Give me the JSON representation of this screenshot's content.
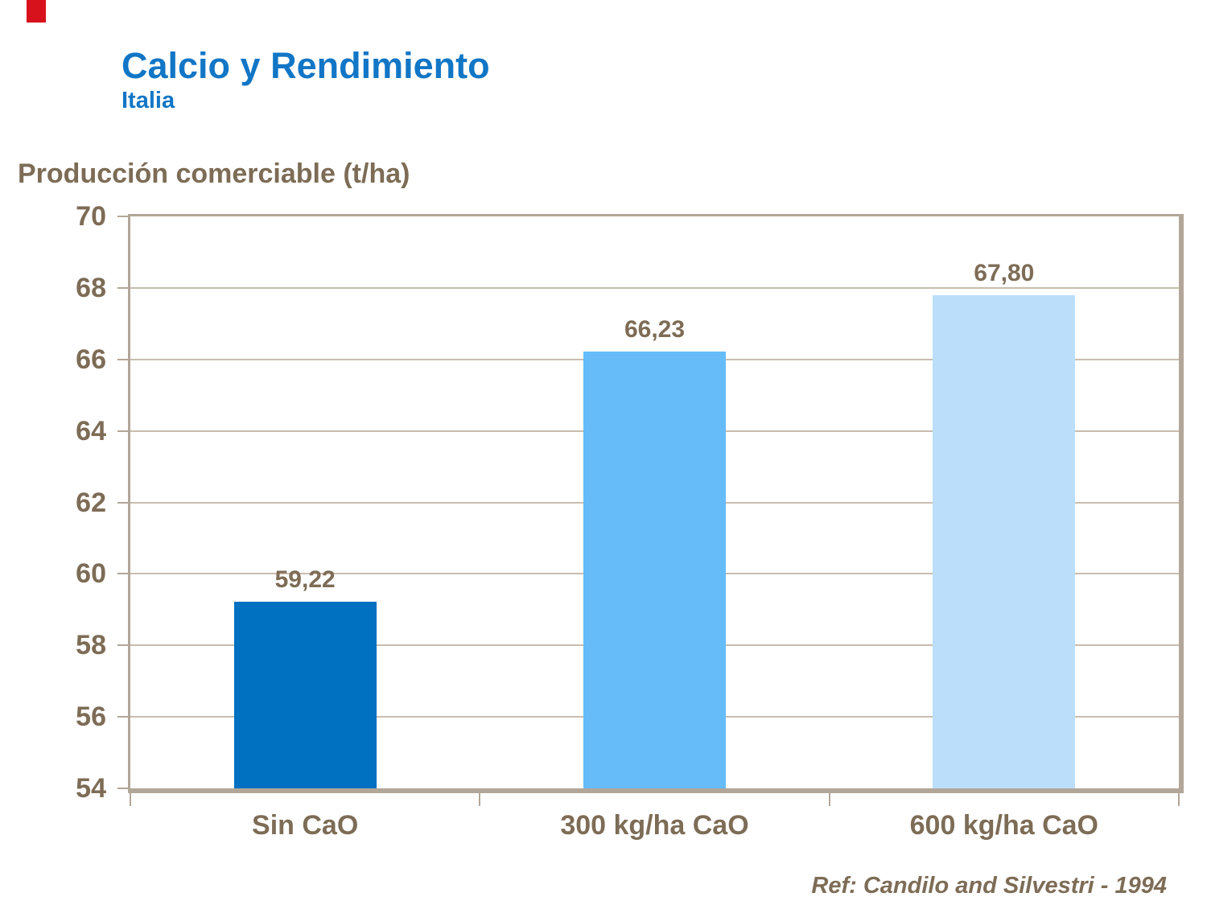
{
  "page": {
    "title": "Calcio y Rendimiento",
    "subtitle": "Italia",
    "reference": "Ref: Candilo and Silvestri - 1994"
  },
  "colors": {
    "title_blue": "#1276C6",
    "text_brown": "#7D6C56",
    "frame_tan": "#B2A698",
    "gridline_tan": "#C8BDAF",
    "accent_red": "#D8121C",
    "bars": [
      "#0070C0",
      "#66BCF8",
      "#BBDEFA"
    ]
  },
  "chart_data": {
    "type": "bar",
    "title": "Calcio y Rendimiento — Italia",
    "axis_title": "Producción comerciable (t/ha)",
    "categories": [
      "Sin CaO",
      "300 kg/ha CaO",
      "600 kg/ha CaO"
    ],
    "values": [
      59.22,
      66.23,
      67.8
    ],
    "value_labels": [
      "59,22",
      "66,23",
      "67,80"
    ],
    "xlabel": "",
    "ylabel": "Producción comerciable (t/ha)",
    "ylim": [
      54,
      70
    ],
    "yticks": [
      54,
      56,
      58,
      60,
      62,
      64,
      66,
      68,
      70
    ],
    "grid": true,
    "legend_position": "none"
  }
}
